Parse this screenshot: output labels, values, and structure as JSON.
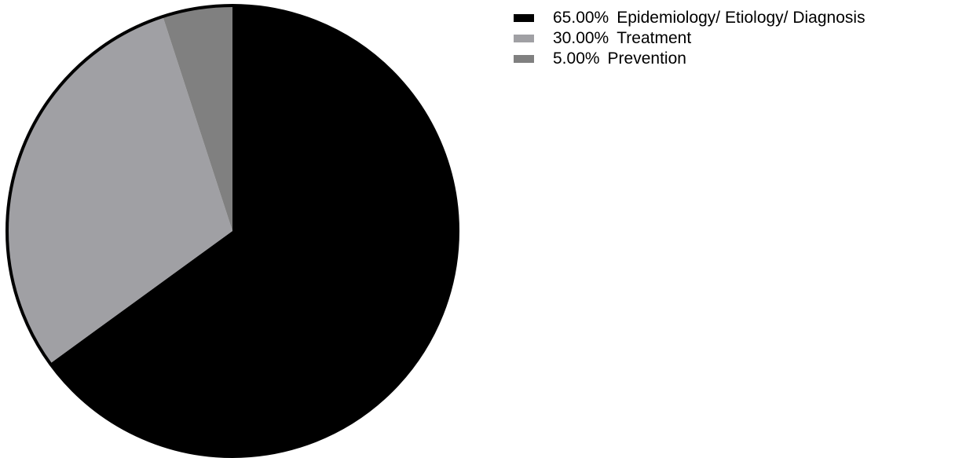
{
  "chart_data": {
    "type": "pie",
    "title": "",
    "slices": [
      {
        "label": "Epidemiology/ Etiology/ Diagnosis",
        "percent_label": "65.00%",
        "value": 65.0,
        "color": "#000000"
      },
      {
        "label": "Treatment",
        "percent_label": "30.00%",
        "value": 30.0,
        "color": "#a0a0a4"
      },
      {
        "label": "Prevention",
        "percent_label": "5.00%",
        "value": 5.0,
        "color": "#808080"
      }
    ],
    "start_angle": "12 o'clock",
    "direction": "clockwise",
    "legend_position": "top-right",
    "outline_color": "#000000"
  }
}
